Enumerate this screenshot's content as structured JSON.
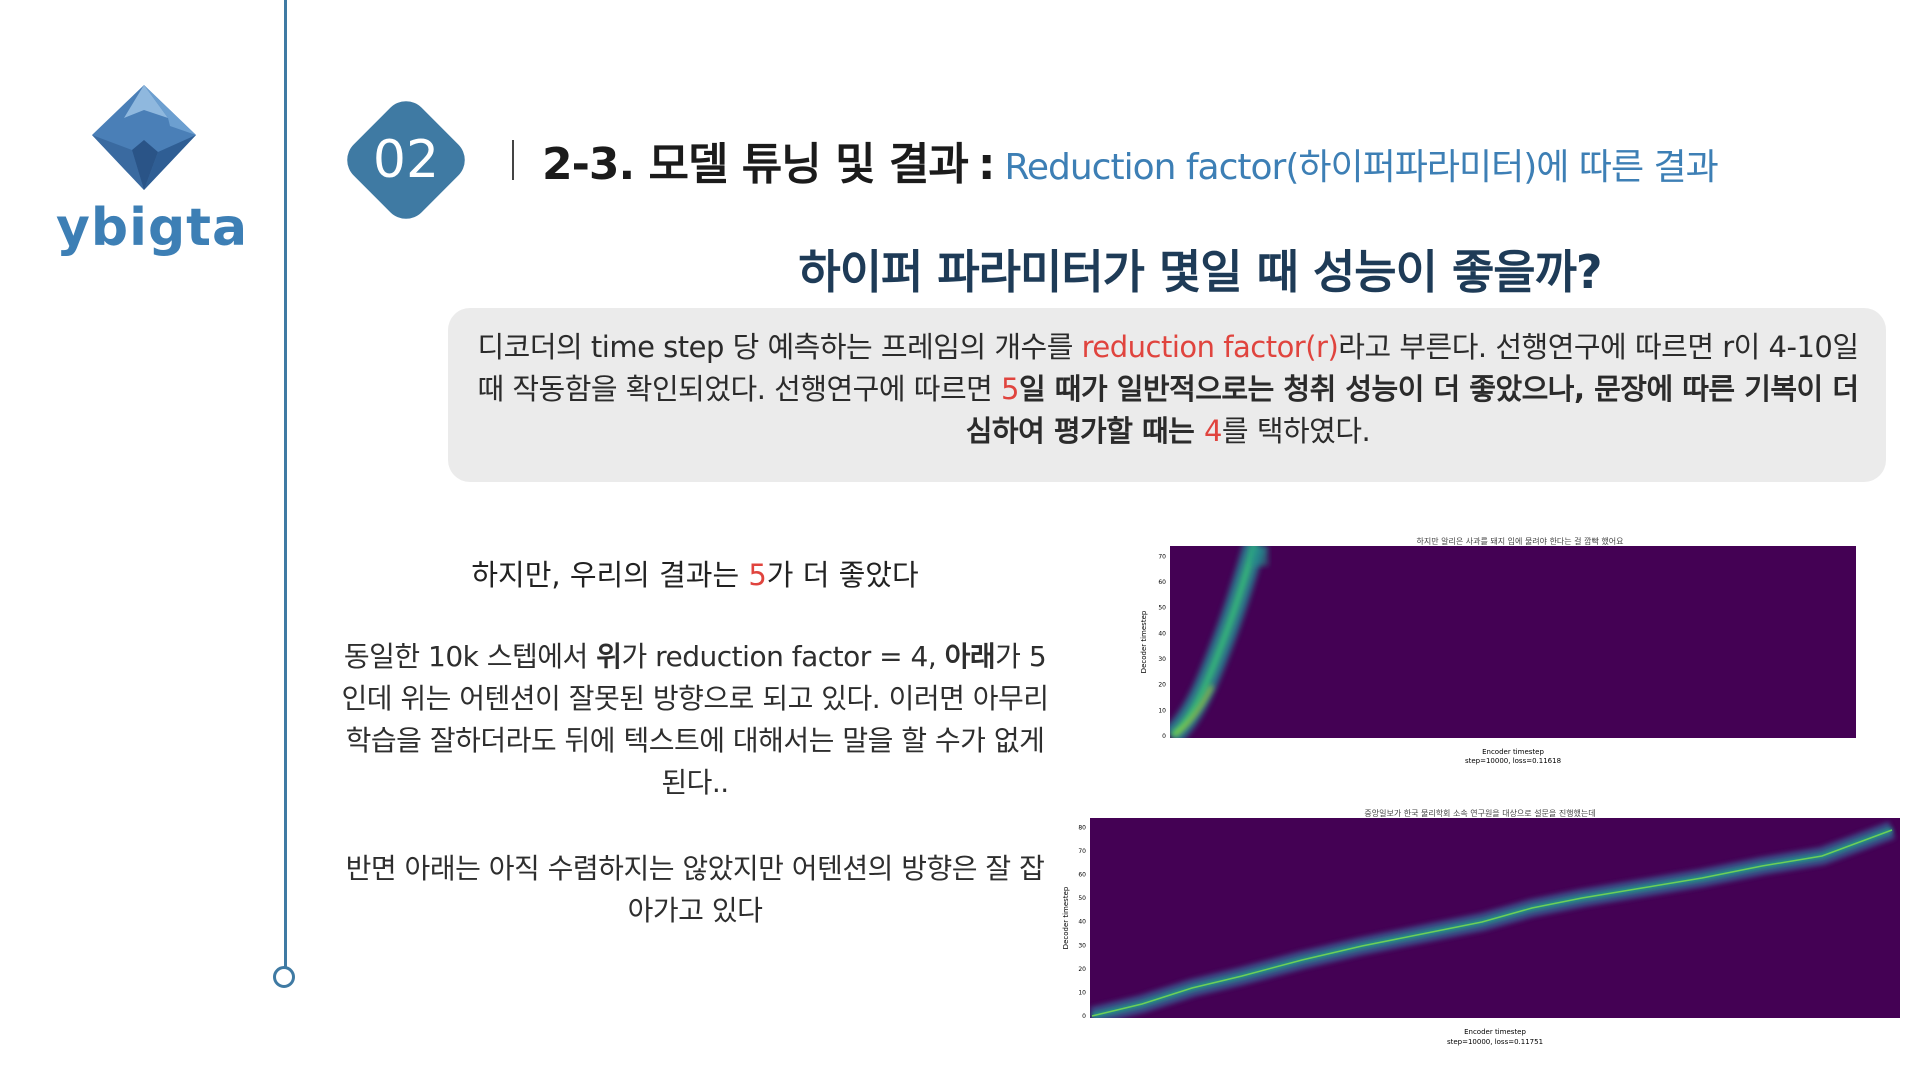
{
  "brand": {
    "logo_text": "ybigta"
  },
  "section": {
    "number": "02",
    "title": "2-3. 모델 튜닝 및 결과",
    "colon": ":",
    "subtitle": "Reduction factor(하이퍼파라미터)에 따른 결과"
  },
  "question": "하이퍼 파라미터가 몇일 때 성능이 좋을까?",
  "info": {
    "s1": "디코더의 time step 당 예측하는 프레임의 개수를 ",
    "s1_red": "reduction factor(r)",
    "s2": "라고 부른다. 선행연구에 따르면 r이 4-10일 때 작동함을 확인되었다.  선행연구에 따르면 ",
    "s2_red": "5",
    "s3_bold": "일 때가 일반적으로는 청취 성능이 더 좋았으나, 문장에 따른 기복이 더 심하여 평가할 때는 ",
    "s3_red": "4",
    "s4": "를 택하였다."
  },
  "however": {
    "pre": "하지만, 우리의 결과는 ",
    "red": "5",
    "post": "가 더 좋았다"
  },
  "para1": {
    "a": "동일한 10k 스텝에서 ",
    "b_bold": "위",
    "c": "가 reduction factor = 4, ",
    "d_bold": "아래",
    "e": "가 5인데 위는 어텐션이 잘못된 방향으로 되고 있다. 이러면 아무리 학습을 잘하더라도 뒤에 텍스트에 대해서는 말을 할 수가 없게 된다.."
  },
  "para2": "반면 아래는 아직 수렴하지는 않았지만 어텐션의 방향은 잘 잡아가고 있다",
  "plots": [
    {
      "title": "하지만 알리은 사과를 돼지 입에 물려야 한다는 걸 깜빡 했어요",
      "ylabel": "Decoder timestep",
      "xlabel": "Encoder timestep",
      "caption": "step=10000, loss=0.11618",
      "yticks": [
        "0",
        "10",
        "20",
        "30",
        "40",
        "50",
        "60",
        "70"
      ]
    },
    {
      "title": "중앙일보가 한국 물리학회 소속 연구원을 대상으로 설문을 진행했는데",
      "ylabel": "Decoder timestep",
      "xlabel": "Encoder timestep",
      "caption": "step=10000, loss=0.11751",
      "yticks": [
        "0",
        "10",
        "20",
        "30",
        "40",
        "50",
        "60",
        "70",
        "80"
      ]
    }
  ],
  "colors": {
    "accent": "#3d7fb5",
    "badge": "#3f7aa3",
    "highlight": "#e0443e",
    "heatmap_bg": "#440154"
  }
}
